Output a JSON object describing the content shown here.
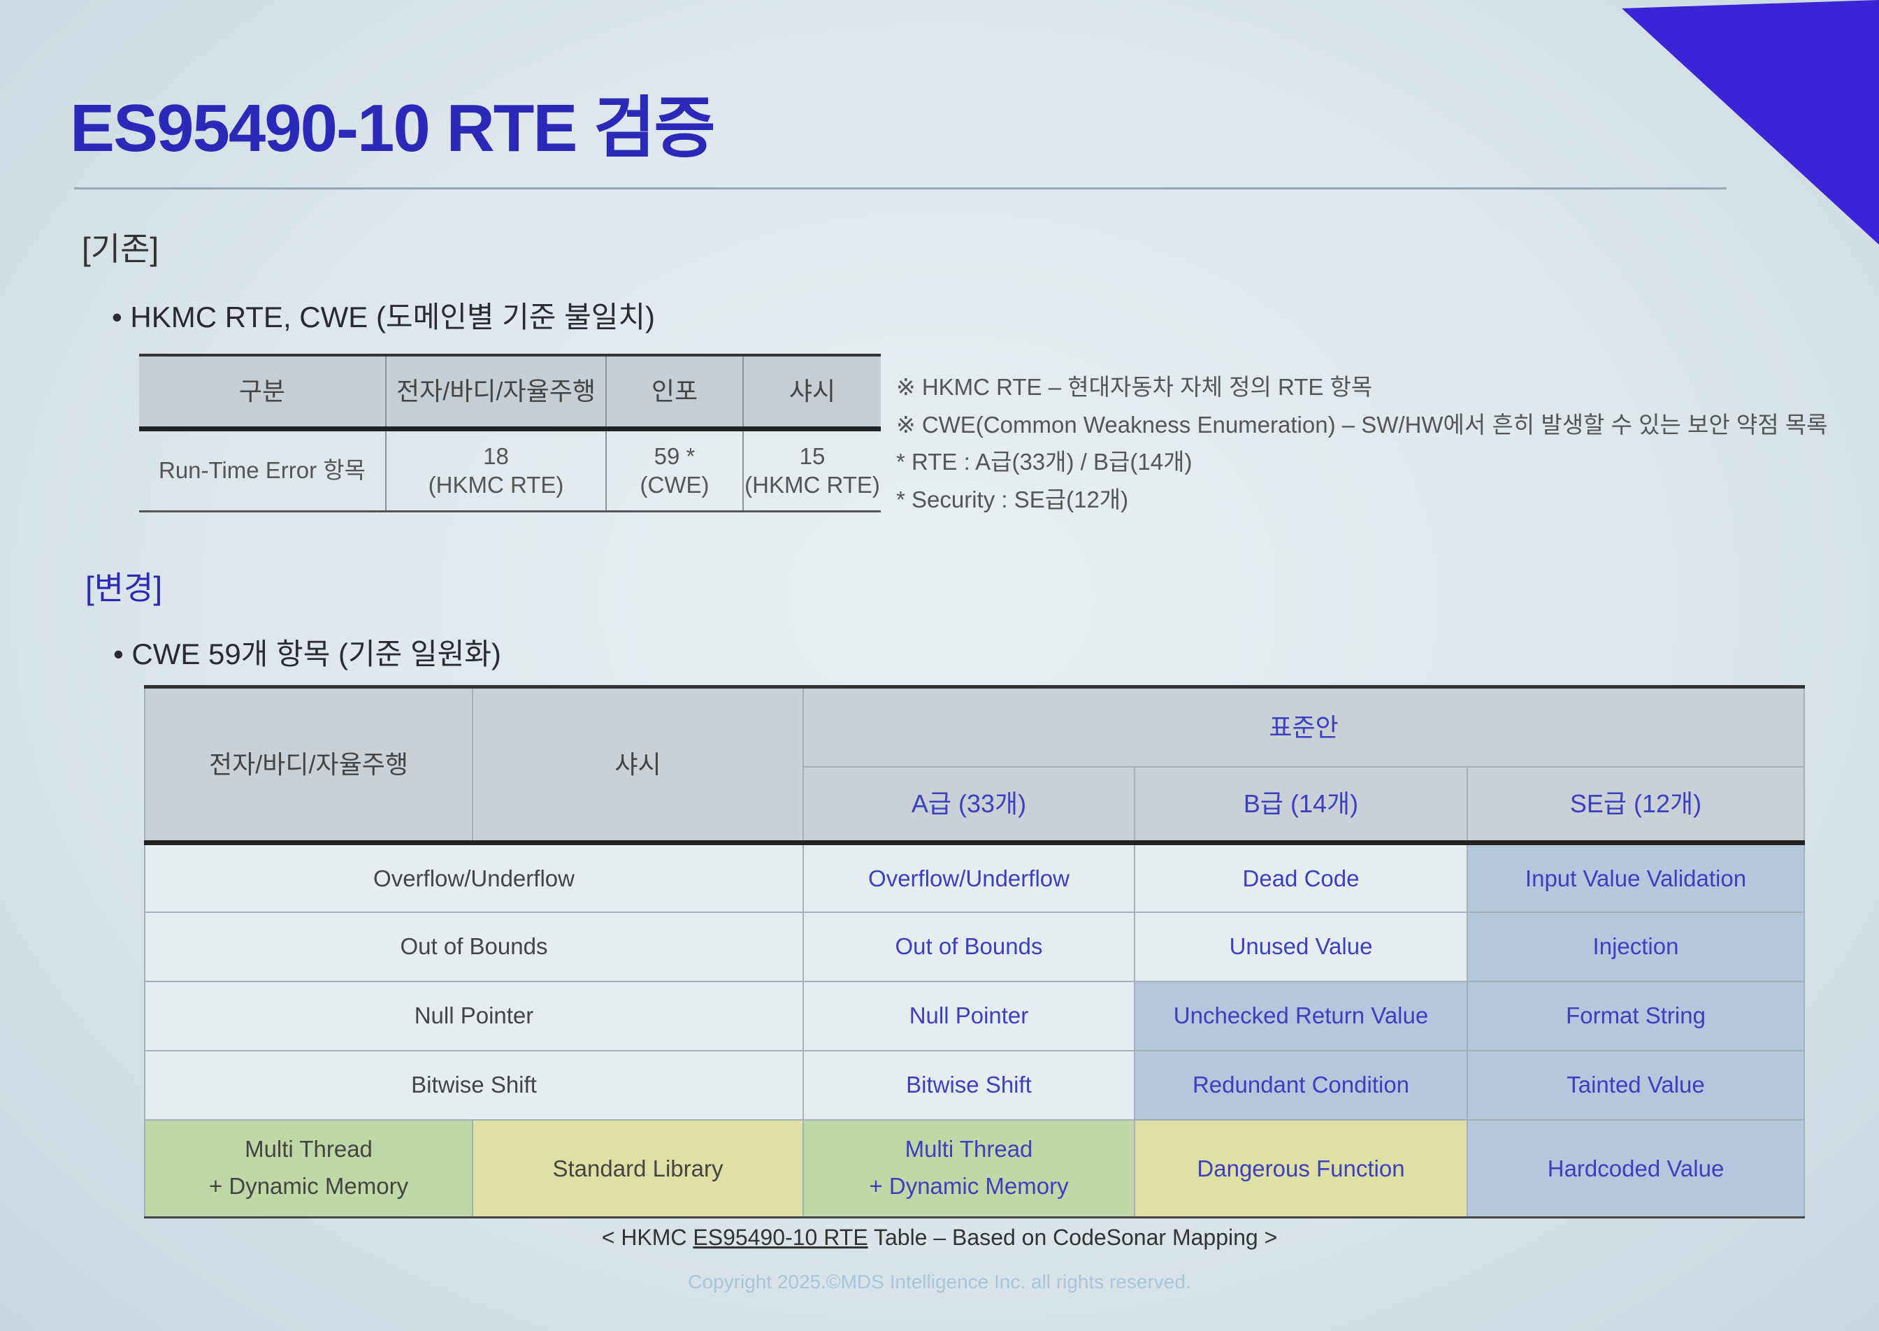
{
  "title": "ES95490-10 RTE 검증",
  "colors": {
    "title": "#2b2ab8",
    "accent_triangle": "#3a24d6",
    "standard_text": "#3b3fc0",
    "security_cell": "#b3c8dc",
    "green_cell": "#bfd8a6",
    "yellow_cell": "#dfe0a3"
  },
  "existing": {
    "section": "[기존]",
    "bullet": "HKMC RTE, CWE (도메인별 기준 불일치)",
    "table": {
      "headers": [
        "구분",
        "전자/바디/자율주행",
        "인포",
        "샤시"
      ],
      "row": {
        "label": "Run-Time Error 항목",
        "cells": [
          {
            "count": "18",
            "type": "(HKMC RTE)"
          },
          {
            "count": "59 *",
            "type": "(CWE)"
          },
          {
            "count": "15",
            "type": "(HKMC RTE)"
          }
        ]
      }
    },
    "notes": [
      "※ HKMC RTE  –  현대자동차 자체 정의 RTE 항목",
      "※ CWE(Common Weakness Enumeration)  –  SW/HW에서 흔히 발생할 수 있는 보안 약점 목록",
      "*  RTE : A급(33개) / B급(14개)",
      "*  Security : SE급(12개)"
    ]
  },
  "changed": {
    "section": "[변경]",
    "bullet": "CWE 59개 항목 (기준 일원화)",
    "table": {
      "col1": "전자/바디/자율주행",
      "col2": "샤시",
      "standard": "표준안",
      "grades": [
        "A급 (33개)",
        "B급 (14개)",
        "SE급 (12개)"
      ],
      "rows": [
        {
          "left": "Overflow/Underflow",
          "a": "Overflow/Underflow",
          "b": "Dead Code",
          "se": "Input Value Validation"
        },
        {
          "left": "Out of Bounds",
          "a": "Out of Bounds",
          "b": "Unused Value",
          "se": "Injection"
        },
        {
          "left": "Null Pointer",
          "a": "Null Pointer",
          "b": "Unchecked Return Value",
          "se": "Format String"
        },
        {
          "left": "Bitwise Shift",
          "a": "Bitwise Shift",
          "b": "Redundant Condition",
          "se": "Tainted Value"
        }
      ],
      "last": {
        "col1a": "Multi Thread",
        "col1b": "+ Dynamic Memory",
        "col2": "Standard Library",
        "a1": "Multi Thread",
        "a2": "+ Dynamic Memory",
        "b": "Dangerous Function",
        "se": "Hardcoded Value"
      }
    }
  },
  "caption": {
    "pre": "< HKMC ",
    "underlined": "ES95490-10 RTE",
    "post": " Table – Based on CodeSonar Mapping >"
  },
  "copyright": "Copyright 2025.©MDS Intelligence Inc. all rights reserved."
}
